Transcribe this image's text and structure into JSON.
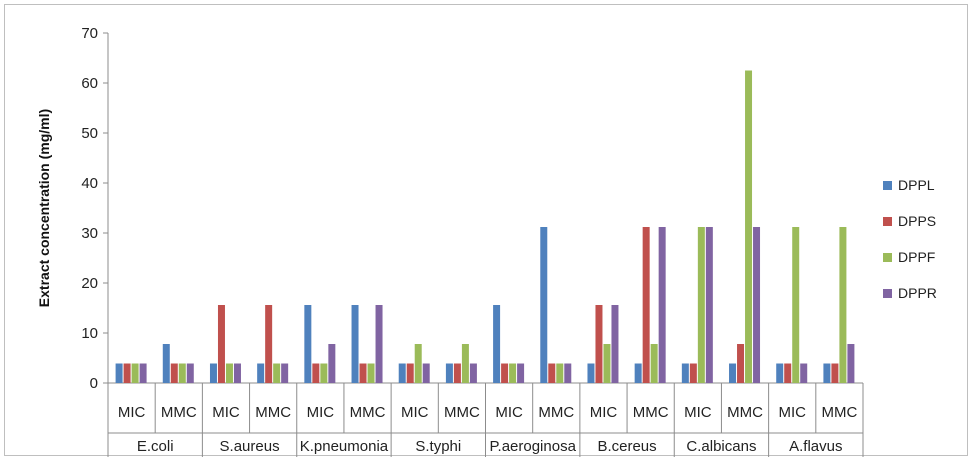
{
  "chart_data": {
    "type": "bar",
    "title": "",
    "xlabel": "",
    "ylabel": "Extract concentration (mg/ml)",
    "ylim": [
      0,
      70
    ],
    "yticks": [
      0,
      10,
      20,
      30,
      40,
      50,
      60,
      70
    ],
    "grid": false,
    "legend_position": "right",
    "groups": [
      "E.coli",
      "S.aureus",
      "K.pneumonia",
      "S.typhi",
      "P.aeroginosa",
      "B.cereus",
      "C.albicans",
      "A.flavus"
    ],
    "categories": [
      "MIC",
      "MMC",
      "MIC",
      "MMC",
      "MIC",
      "MMC",
      "MIC",
      "MMC",
      "MIC",
      "MMC",
      "MIC",
      "MMC",
      "MIC",
      "MMC",
      "MIC",
      "MMC"
    ],
    "series": [
      {
        "name": "DPPL",
        "color": "#4f81bd",
        "values": [
          3.9,
          7.8,
          3.9,
          3.9,
          15.6,
          15.6,
          3.9,
          3.9,
          15.6,
          31.2,
          3.9,
          3.9,
          3.9,
          3.9,
          3.9,
          3.9
        ]
      },
      {
        "name": "DPPS",
        "color": "#c0504d",
        "values": [
          3.9,
          3.9,
          15.6,
          15.6,
          3.9,
          3.9,
          3.9,
          3.9,
          3.9,
          3.9,
          15.6,
          31.2,
          3.9,
          7.8,
          3.9,
          3.9
        ]
      },
      {
        "name": "DPPF",
        "color": "#9bbb59",
        "values": [
          3.9,
          3.9,
          3.9,
          3.9,
          3.9,
          3.9,
          7.8,
          7.8,
          3.9,
          3.9,
          7.8,
          7.8,
          31.2,
          62.5,
          31.2,
          31.2
        ]
      },
      {
        "name": "DPPR",
        "color": "#8064a2",
        "values": [
          3.9,
          3.9,
          3.9,
          3.9,
          7.8,
          15.6,
          3.9,
          3.9,
          3.9,
          3.9,
          15.6,
          31.2,
          31.2,
          31.2,
          3.9,
          7.8
        ]
      }
    ]
  }
}
